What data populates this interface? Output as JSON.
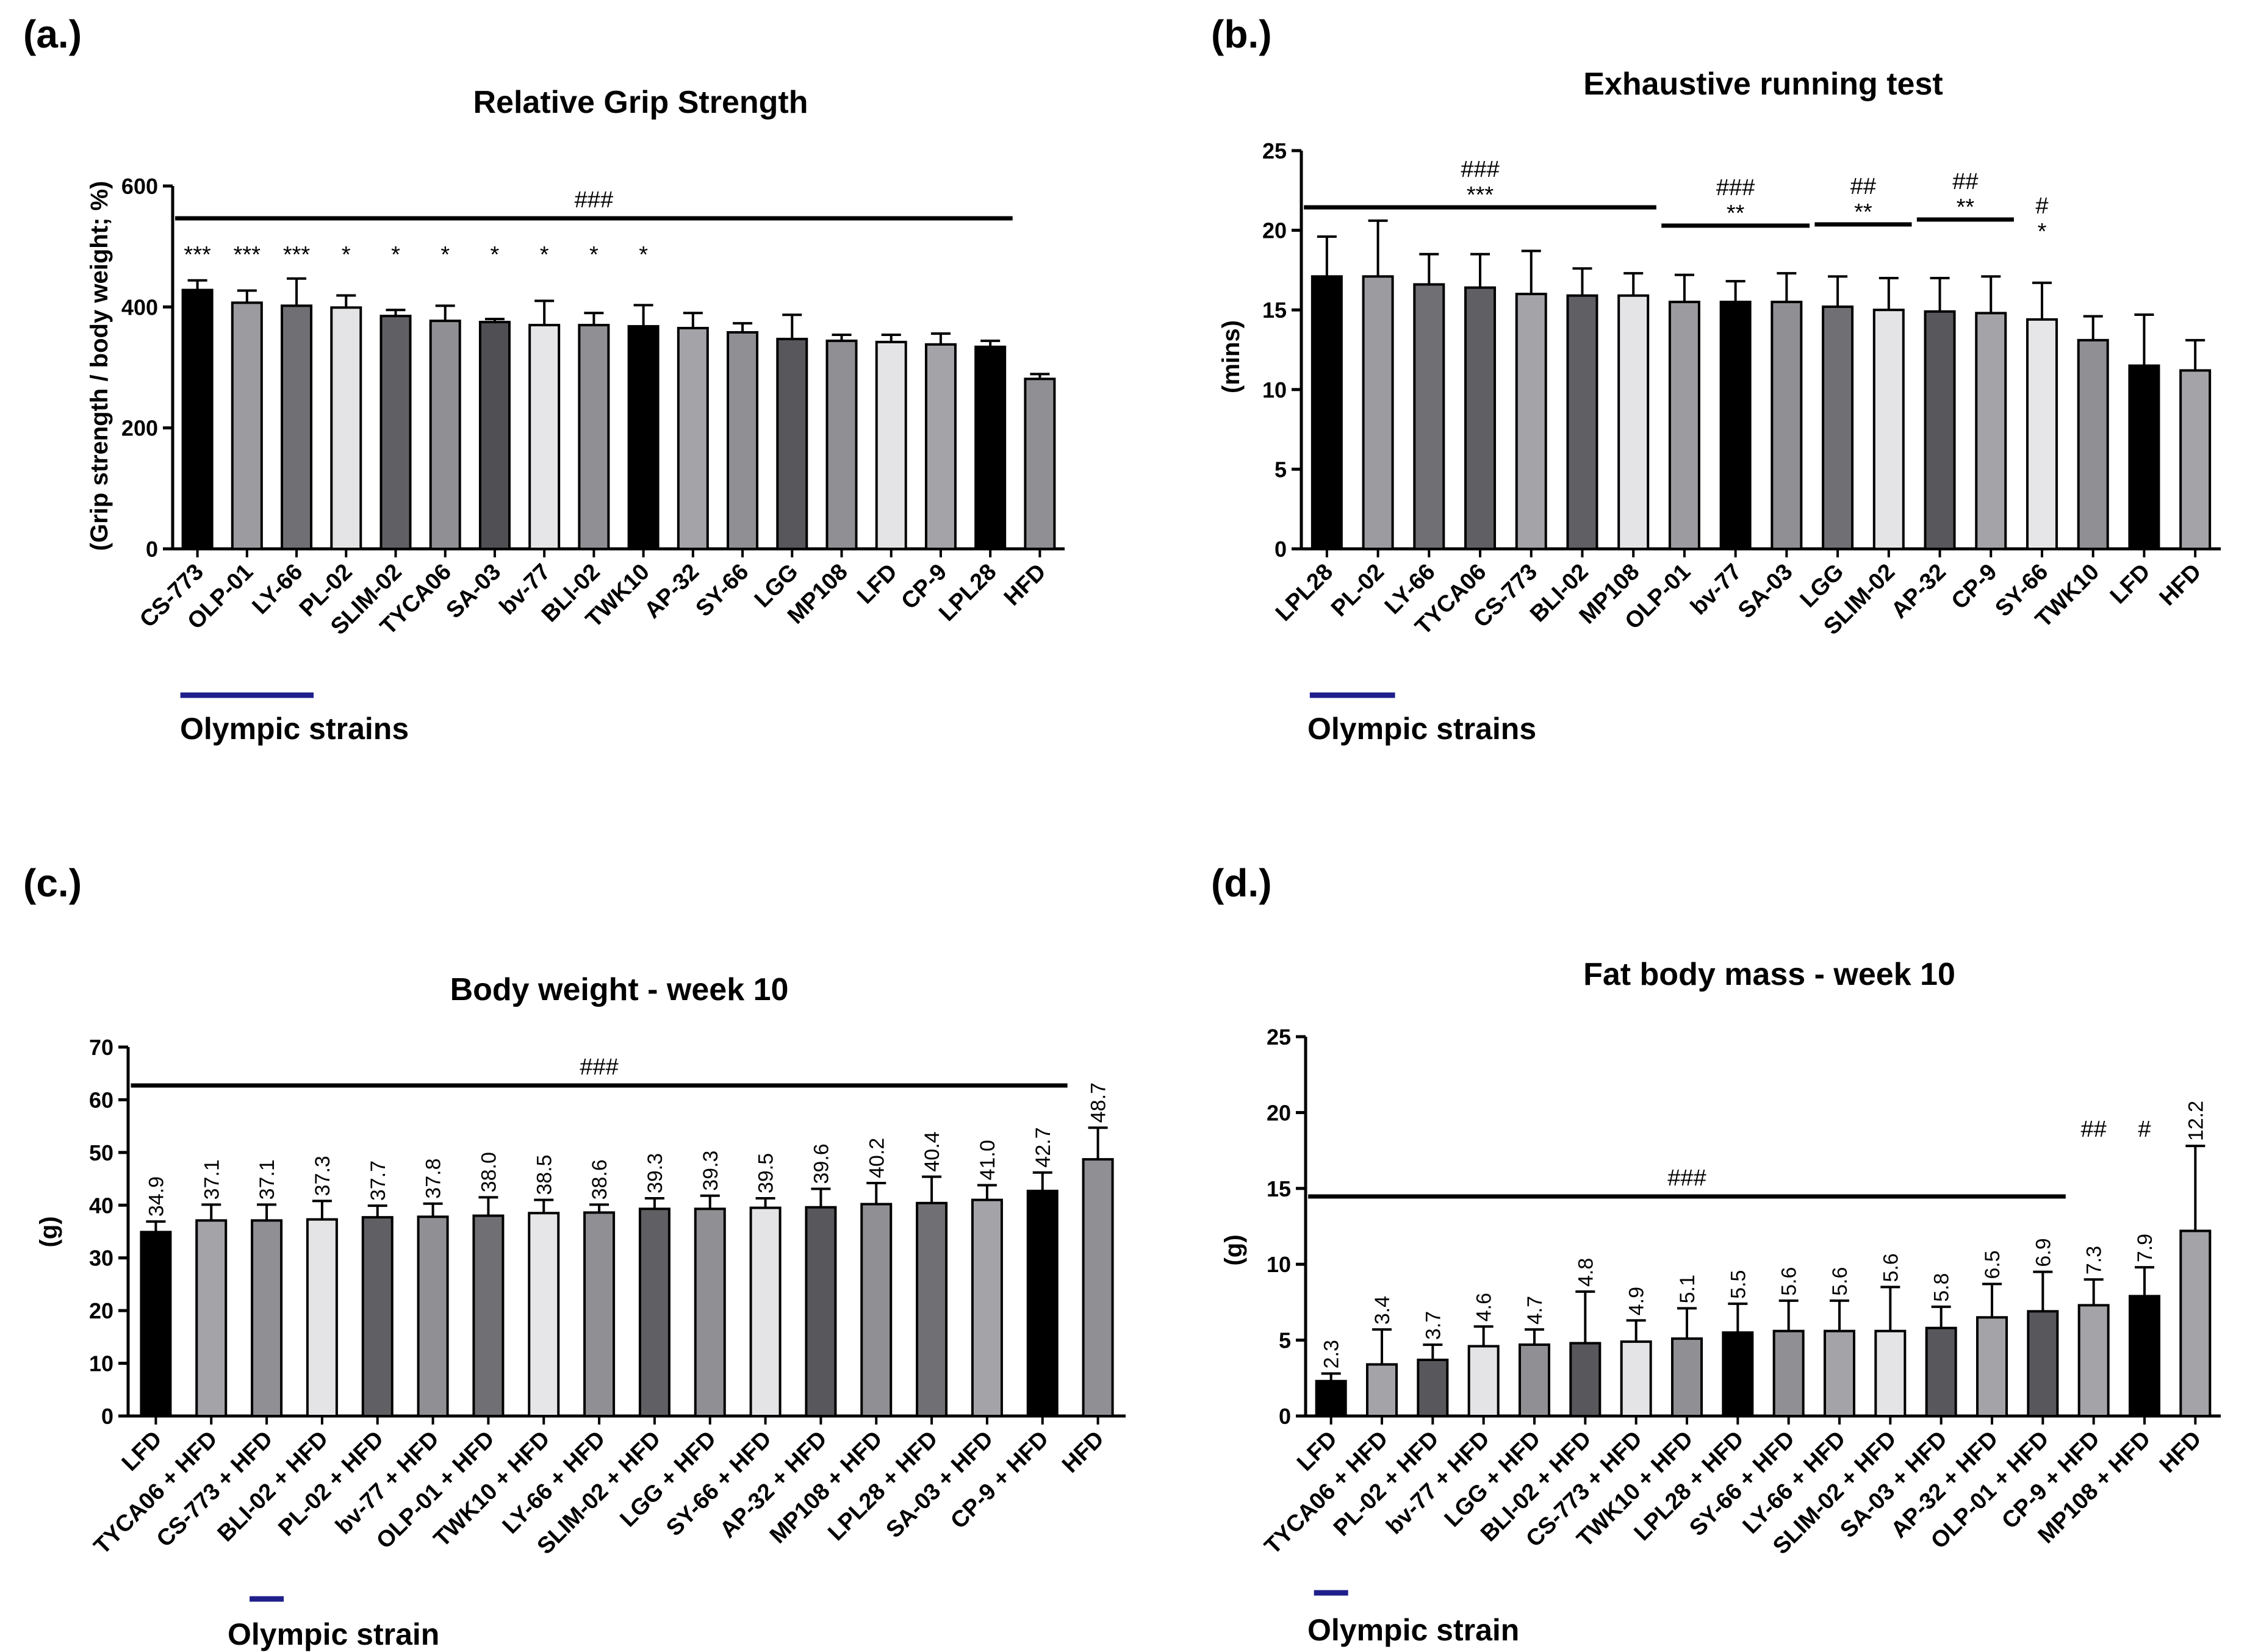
{
  "chart_data": [
    {
      "id": "a",
      "panel_label": "(a.)",
      "type": "bar",
      "title": "Relative Grip Strength",
      "ylabel": "(Grip strength / body weight; %)",
      "xlabel": "",
      "ylim": [
        0,
        600
      ],
      "yticks": [
        "0",
        "200",
        "400",
        "600"
      ],
      "categories": [
        "CS-773",
        "OLP-01",
        "LY-66",
        "PL-02",
        "SLIM-02",
        "TYCA06",
        "SA-03",
        "bv-77",
        "BLI-02",
        "TWK10",
        "AP-32",
        "SY-66",
        "LGG",
        "MP108",
        "LFD",
        "CP-9",
        "LPL28",
        "HFD"
      ],
      "values": [
        428,
        407,
        402,
        399,
        385,
        377,
        375,
        370,
        370,
        368,
        365,
        358,
        347,
        344,
        342,
        338,
        334,
        281
      ],
      "errors": [
        16,
        20,
        45,
        20,
        10,
        25,
        5,
        40,
        20,
        35,
        25,
        15,
        40,
        10,
        12,
        18,
        10,
        8
      ],
      "colors": [
        "#000000",
        "#9c9ca0",
        "#707074",
        "#e4e4e6",
        "#606064",
        "#909094",
        "#505054",
        "#e6e6e8",
        "#909094",
        "#000000",
        "#a4a4a8",
        "#909094",
        "#58585c",
        "#909094",
        "#e4e4e6",
        "#a4a4a8",
        "#000000",
        "#909094"
      ],
      "stars": [
        "***",
        "***",
        "***",
        "*",
        "*",
        "*",
        "*",
        "*",
        "*",
        "*"
      ],
      "sig_lines": [
        {
          "label": "###",
          "from_index": 0,
          "to_index": 16
        }
      ],
      "group_label": "Olympic strains",
      "group_span": [
        0,
        2
      ]
    },
    {
      "id": "b",
      "panel_label": "(b.)",
      "type": "bar",
      "title": "Exhaustive running test",
      "ylabel": "(mins)",
      "xlabel": "",
      "ylim": [
        0,
        25
      ],
      "yticks": [
        "0",
        "5",
        "10",
        "15",
        "20",
        "25"
      ],
      "categories": [
        "LPL28",
        "PL-02",
        "LY-66",
        "TYCA06",
        "CS-773",
        "BLI-02",
        "MP108",
        "OLP-01",
        "bv-77",
        "SA-03",
        "LGG",
        "SLIM-02",
        "AP-32",
        "CP-9",
        "SY-66",
        "TWK10",
        "LFD",
        "HFD"
      ],
      "values": [
        17.1,
        17.1,
        16.6,
        16.4,
        16.0,
        15.9,
        15.9,
        15.5,
        15.5,
        15.5,
        15.2,
        15.0,
        14.9,
        14.8,
        14.4,
        13.1,
        11.5,
        11.2
      ],
      "errors": [
        2.5,
        3.5,
        1.9,
        2.1,
        2.7,
        1.7,
        1.4,
        1.7,
        1.3,
        1.8,
        1.9,
        2.0,
        2.1,
        2.3,
        2.3,
        1.5,
        3.2,
        1.9
      ],
      "colors": [
        "#000000",
        "#9c9ca0",
        "#707074",
        "#606064",
        "#a4a4a8",
        "#606064",
        "#e4e4e6",
        "#9c9ca0",
        "#000000",
        "#909094",
        "#707074",
        "#e4e4e6",
        "#58585c",
        "#a4a4a8",
        "#e6e6e8",
        "#909094",
        "#000000",
        "#a4a4a8"
      ],
      "sig_lines": [
        {
          "label": "###",
          "stars": "***",
          "from_index": 0,
          "to_index": 6
        },
        {
          "label": "###",
          "stars": "**",
          "from_index": 7,
          "to_index": 9
        },
        {
          "label": "##",
          "stars": "**",
          "from_index": 10,
          "to_index": 11
        },
        {
          "label": "##",
          "stars": "**",
          "from_index": 12,
          "to_index": 13
        },
        {
          "label": "#",
          "stars": "*",
          "from_index": 14,
          "to_index": 14
        }
      ],
      "group_label": "Olympic strains",
      "group_span": [
        0,
        1
      ]
    },
    {
      "id": "c",
      "panel_label": "(c.)",
      "type": "bar",
      "title": "Body weight - week 10",
      "ylabel": "(g)",
      "xlabel": "",
      "ylim": [
        0,
        70
      ],
      "yticks": [
        "0",
        "10",
        "20",
        "30",
        "40",
        "50",
        "60",
        "70"
      ],
      "categories": [
        "LFD",
        "TYCA06 + HFD",
        "CS-773 + HFD",
        "BLI-02 + HFD",
        "PL-02 + HFD",
        "bv-77 + HFD",
        "OLP-01 + HFD",
        "TWK10 + HFD",
        "LY-66 + HFD",
        "SLIM-02 + HFD",
        "LGG + HFD",
        "SY-66 + HFD",
        "AP-32 + HFD",
        "MP108 + HFD",
        "LPL28 + HFD",
        "SA-03 + HFD",
        "CP-9 + HFD",
        "HFD"
      ],
      "values": [
        34.9,
        37.1,
        37.1,
        37.3,
        37.7,
        37.8,
        38.0,
        38.5,
        38.6,
        39.3,
        39.3,
        39.5,
        39.6,
        40.2,
        40.4,
        41.0,
        42.7,
        48.7
      ],
      "value_labels": [
        "34.9",
        "37.1",
        "37.1",
        "37.3",
        "37.7",
        "37.8",
        "38.0",
        "38.5",
        "38.6",
        "39.3",
        "39.3",
        "39.5",
        "39.6",
        "40.2",
        "40.4",
        "41.0",
        "42.7",
        "48.7"
      ],
      "errors": [
        2.0,
        3.0,
        3.0,
        3.5,
        2.2,
        2.5,
        3.5,
        2.5,
        1.5,
        2.0,
        2.5,
        1.8,
        3.5,
        4.0,
        5.0,
        2.8,
        3.5,
        6.0
      ],
      "colors": [
        "#000000",
        "#a4a4a8",
        "#909094",
        "#e4e4e6",
        "#606064",
        "#909094",
        "#707074",
        "#e6e6e8",
        "#909094",
        "#606064",
        "#909094",
        "#e4e4e6",
        "#58585c",
        "#909094",
        "#707074",
        "#a4a4a8",
        "#000000",
        "#909094"
      ],
      "sig_lines": [
        {
          "label": "###",
          "from_index": 0,
          "to_index": 16
        }
      ],
      "group_label": "Olympic strain",
      "group_span": [
        2,
        2
      ]
    },
    {
      "id": "d",
      "panel_label": "(d.)",
      "type": "bar",
      "title": "Fat body mass - week 10",
      "ylabel": "(g)",
      "xlabel": "",
      "ylim": [
        0,
        25
      ],
      "yticks": [
        "0",
        "5",
        "10",
        "15",
        "20",
        "25"
      ],
      "categories": [
        "LFD",
        "TYCA06 + HFD",
        "PL-02 + HFD",
        "bv-77 + HFD",
        "LGG + HFD",
        "BLI-02 + HFD",
        "CS-773 + HFD",
        "TWK10 + HFD",
        "LPL28 + HFD",
        "SY-66 + HFD",
        "LY-66 + HFD",
        "SLIM-02 + HFD",
        "SA-03 + HFD",
        "AP-32 + HFD",
        "OLP-01 + HFD",
        "CP-9 + HFD",
        "MP108 + HFD",
        "HFD"
      ],
      "values": [
        2.3,
        3.4,
        3.7,
        4.6,
        4.7,
        4.8,
        4.9,
        5.1,
        5.5,
        5.6,
        5.6,
        5.6,
        5.8,
        6.5,
        6.9,
        7.3,
        7.9,
        12.2
      ],
      "value_labels": [
        "2.3",
        "3.4",
        "3.7",
        "4.6",
        "4.7",
        "4.8",
        "4.9",
        "5.1",
        "5.5",
        "5.6",
        "5.6",
        "5.6",
        "5.8",
        "6.5",
        "6.9",
        "7.3",
        "7.9",
        "12.2"
      ],
      "errors": [
        0.5,
        2.3,
        1.0,
        1.3,
        1.0,
        3.4,
        1.4,
        2.0,
        1.9,
        2.0,
        2.0,
        2.9,
        1.4,
        2.2,
        2.6,
        1.7,
        1.9,
        5.6
      ],
      "colors": [
        "#000000",
        "#a4a4a8",
        "#58585c",
        "#e4e4e6",
        "#909094",
        "#58585c",
        "#e4e4e6",
        "#909094",
        "#000000",
        "#909094",
        "#a4a4a8",
        "#e4e4e6",
        "#58585c",
        "#a4a4a8",
        "#58585c",
        "#a4a4a8",
        "#000000",
        "#a4a4a8"
      ],
      "sig_lines": [
        {
          "label": "###",
          "from_index": 0,
          "to_index": 14
        }
      ],
      "extra_marks": [
        {
          "label": "##",
          "index": 15
        },
        {
          "label": "#",
          "index": 16
        }
      ],
      "group_label": "Olympic strain",
      "group_span": [
        0,
        0
      ]
    }
  ],
  "style": {
    "accent_underline": "#1f1f8c",
    "ink": "#000000"
  }
}
